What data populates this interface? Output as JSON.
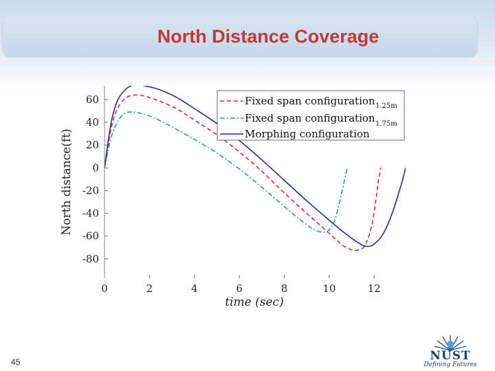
{
  "slide": {
    "title": "North Distance Coverage",
    "page_number": "45",
    "logo_text": "NUST",
    "logo_tagline": "Defining Futures"
  },
  "colors": {
    "title": "#c0393b",
    "fixed_125": "#d92b2b",
    "fixed_175": "#2a9a9a",
    "morphing": "#1f2d9e"
  },
  "chart_data": {
    "type": "line",
    "title": "",
    "xlabel": "time  (sec)",
    "ylabel": "North distance(ft)",
    "xlim": [
      0,
      13.4
    ],
    "ylim": [
      -97,
      72
    ],
    "xticks": [
      0,
      2,
      4,
      6,
      8,
      10,
      12
    ],
    "yticks": [
      60,
      40,
      20,
      0,
      -20,
      -40,
      -60,
      -80
    ],
    "legend_position": "top-right",
    "series": [
      {
        "name": "Fixed span configuration",
        "name_suffix": "1.25m",
        "style": "dashed",
        "color": "#d92b2b",
        "x": [
          0,
          0.3,
          0.6,
          1.0,
          1.4,
          1.8,
          2.4,
          3.2,
          4.0,
          5.0,
          6.0,
          7.0,
          8.0,
          9.0,
          9.8,
          10.6,
          11.0,
          11.3,
          11.6,
          11.9,
          12.1,
          12.2,
          12.3
        ],
        "y": [
          0,
          35,
          53,
          62,
          64,
          63,
          59,
          52,
          42,
          29,
          14,
          -3,
          -22,
          -40,
          -54,
          -68,
          -72,
          -72,
          -68,
          -50,
          -25,
          -10,
          0
        ]
      },
      {
        "name": "Fixed span configuration",
        "name_suffix": "1.75m",
        "style": "dashdot",
        "color": "#2a9a9a",
        "x": [
          0,
          0.3,
          0.6,
          0.9,
          1.2,
          1.6,
          2.2,
          3.0,
          4.0,
          5.0,
          6.0,
          7.0,
          8.0,
          8.8,
          9.4,
          9.9,
          10.2,
          10.4,
          10.6,
          10.8
        ],
        "y": [
          0,
          27,
          41,
          48,
          49,
          48,
          44,
          36,
          25,
          13,
          -1,
          -17,
          -34,
          -47,
          -55,
          -56,
          -48,
          -35,
          -18,
          0
        ]
      },
      {
        "name": "Morphing configuration",
        "style": "solid",
        "color": "#1f2d9e",
        "x": [
          0,
          0.3,
          0.6,
          1.0,
          1.4,
          1.8,
          2.4,
          3.2,
          4.0,
          5.0,
          6.0,
          7.0,
          8.0,
          9.0,
          10.0,
          10.8,
          11.4,
          11.7,
          12.0,
          12.4,
          12.8,
          13.2,
          13.4
        ],
        "y": [
          0,
          40,
          60,
          70,
          73,
          72,
          69,
          62,
          52,
          39,
          24,
          7,
          -11,
          -29,
          -46,
          -59,
          -67,
          -69,
          -67,
          -58,
          -40,
          -15,
          0
        ]
      }
    ]
  }
}
